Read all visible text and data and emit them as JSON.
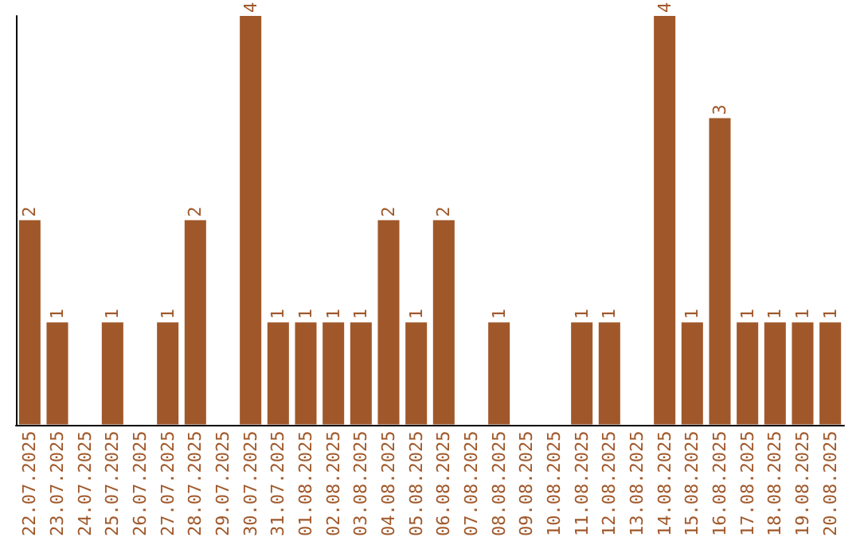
{
  "chart_data": {
    "type": "bar",
    "categories": [
      "22.07.2025",
      "23.07.2025",
      "24.07.2025",
      "25.07.2025",
      "26.07.2025",
      "27.07.2025",
      "28.07.2025",
      "29.07.2025",
      "30.07.2025",
      "31.07.2025",
      "01.08.2025",
      "02.08.2025",
      "03.08.2025",
      "04.08.2025",
      "05.08.2025",
      "06.08.2025",
      "07.08.2025",
      "08.08.2025",
      "09.08.2025",
      "10.08.2025",
      "11.08.2025",
      "12.08.2025",
      "13.08.2025",
      "14.08.2025",
      "15.08.2025",
      "16.08.2025",
      "17.08.2025",
      "18.08.2025",
      "19.08.2025",
      "20.08.2025"
    ],
    "values": [
      2,
      1,
      0,
      1,
      0,
      1,
      2,
      0,
      4,
      1,
      1,
      1,
      1,
      2,
      1,
      2,
      0,
      1,
      0,
      0,
      1,
      1,
      0,
      4,
      1,
      3,
      1,
      1,
      1,
      1
    ],
    "value_labels": [
      "2",
      "1",
      null,
      "1",
      null,
      "1",
      "2",
      null,
      "4",
      "1",
      "1",
      "1",
      "1",
      "2",
      "1",
      "2",
      null,
      "1",
      null,
      null,
      "1",
      "1",
      null,
      "4",
      "1",
      "3",
      "1",
      "1",
      "1",
      "1"
    ],
    "color": "#a0582a",
    "ylim": [
      0,
      4
    ],
    "tick_labels": "x"
  }
}
